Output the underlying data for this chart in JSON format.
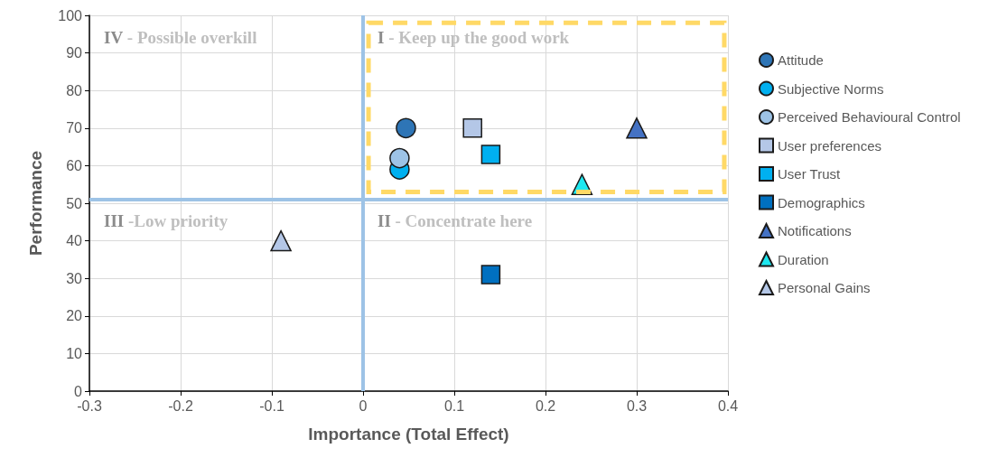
{
  "chart_data": {
    "type": "scatter",
    "xlabel": "Importance (Total Effect)",
    "ylabel": "Performance",
    "xlim": [
      -0.3,
      0.4
    ],
    "xticks": [
      -0.3,
      -0.2,
      -0.1,
      0,
      0.1,
      0.2,
      0.3,
      0.4
    ],
    "ylim": [
      0,
      100
    ],
    "yticks": [
      0,
      10,
      20,
      30,
      40,
      50,
      60,
      70,
      80,
      90,
      100
    ],
    "grid": true,
    "legend": "right",
    "series": [
      {
        "name": "Attitude",
        "color": "#2e75b6",
        "marker": "circle",
        "x": [
          0.047
        ],
        "values": [
          70
        ]
      },
      {
        "name": "Subjective Norms",
        "color": "#00b0f0",
        "marker": "circle",
        "x": [
          0.04
        ],
        "values": [
          59
        ]
      },
      {
        "name": "Perceived Behavioural Control",
        "color": "#9dc3e6",
        "marker": "circle",
        "x": [
          0.04
        ],
        "values": [
          62
        ]
      },
      {
        "name": "User preferences",
        "color": "#b4c7e7",
        "marker": "square",
        "x": [
          0.12
        ],
        "values": [
          70
        ]
      },
      {
        "name": "User Trust",
        "color": "#00b0f0",
        "marker": "square",
        "x": [
          0.14
        ],
        "values": [
          63
        ]
      },
      {
        "name": "Demographics",
        "color": "#0070c0",
        "marker": "square",
        "x": [
          0.14
        ],
        "values": [
          31
        ]
      },
      {
        "name": "Notifications",
        "color": "#4472c4",
        "marker": "triangle",
        "x": [
          0.3
        ],
        "values": [
          70
        ]
      },
      {
        "name": "Duration",
        "color": "#1ee8f0",
        "marker": "triangle",
        "x": [
          0.24
        ],
        "values": [
          55
        ]
      },
      {
        "name": "Personal Gains",
        "color": "#b4c7e7",
        "marker": "triangle",
        "x": [
          -0.09
        ],
        "values": [
          40
        ]
      }
    ],
    "ref_lines": [
      {
        "axis": "x",
        "value": 0,
        "color": "#9dc3e6"
      },
      {
        "axis": "y",
        "value": 51,
        "color": "#9dc3e6"
      }
    ],
    "annotations": [
      "IV - Possible overkill",
      "I - Keep up the good work",
      "III -Low priority",
      "II - Concentrate here"
    ]
  }
}
